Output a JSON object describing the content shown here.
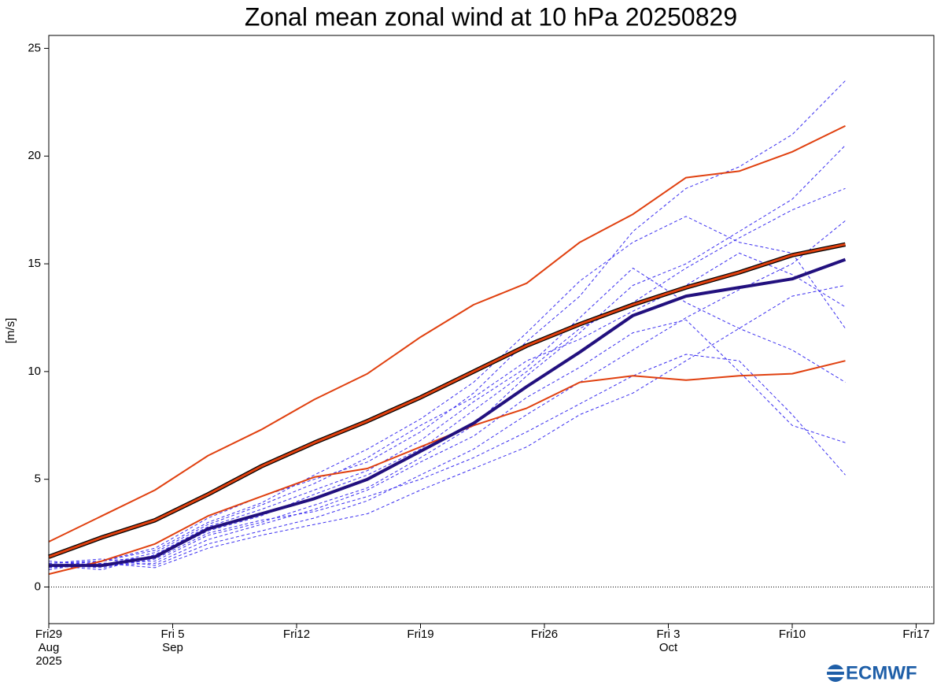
{
  "chart_data": {
    "type": "line",
    "title": "Zonal mean zonal wind at 10 hPa 20250829",
    "y_label": "[m/s]",
    "logo": "ECMWF",
    "x": [
      "2025-08-29",
      "2025-09-01",
      "2025-09-04",
      "2025-09-07",
      "2025-09-10",
      "2025-09-13",
      "2025-09-16",
      "2025-09-19",
      "2025-09-22",
      "2025-09-25",
      "2025-09-28",
      "2025-10-01",
      "2025-10-04",
      "2025-10-07",
      "2025-10-10",
      "2025-10-13"
    ],
    "xlim": [
      "2025-08-29",
      "2025-10-18"
    ],
    "xticks": [
      {
        "value": "2025-08-29",
        "label": "Fri29\nAug\n2025"
      },
      {
        "value": "2025-09-05",
        "label": "Fri 5\nSep"
      },
      {
        "value": "2025-09-12",
        "label": "Fri12"
      },
      {
        "value": "2025-09-19",
        "label": "Fri19"
      },
      {
        "value": "2025-09-26",
        "label": "Fri26"
      },
      {
        "value": "2025-10-03",
        "label": "Fri 3\nOct"
      },
      {
        "value": "2025-10-10",
        "label": "Fri10"
      },
      {
        "value": "2025-10-17",
        "label": "Fri17"
      }
    ],
    "ylim": [
      -1.7,
      25.6
    ],
    "yticks": [
      0,
      5,
      10,
      15,
      20,
      25
    ],
    "reference_line": 0,
    "series": [
      {
        "color": "#3a2ef0",
        "style": "dashed",
        "width": 1,
        "values": [
          0.9,
          1.1,
          1.2,
          2.4,
          3.0,
          3.8,
          4.6,
          6.0,
          7.5,
          9.8,
          11.8,
          14.0,
          15.0,
          16.5,
          18.0,
          20.5
        ]
      },
      {
        "color": "#3a2ef0",
        "style": "dashed",
        "width": 1,
        "values": [
          1.0,
          0.8,
          1.5,
          2.8,
          3.6,
          4.5,
          5.4,
          6.8,
          8.6,
          10.2,
          12.5,
          14.8,
          13.2,
          12.0,
          11.0,
          9.5
        ]
      },
      {
        "color": "#3a2ef0",
        "style": "dashed",
        "width": 1,
        "values": [
          1.1,
          1.3,
          1.0,
          2.0,
          2.6,
          3.2,
          4.0,
          5.2,
          6.4,
          8.0,
          9.5,
          11.0,
          12.5,
          13.8,
          15.0,
          17.0
        ]
      },
      {
        "color": "#3a2ef0",
        "style": "dashed",
        "width": 1,
        "values": [
          0.8,
          1.2,
          1.8,
          3.2,
          4.2,
          5.0,
          5.8,
          7.2,
          9.0,
          11.4,
          13.5,
          16.5,
          18.5,
          19.5,
          21.0,
          23.5
        ]
      },
      {
        "color": "#3a2ef0",
        "style": "dashed",
        "width": 1,
        "values": [
          1.0,
          0.9,
          1.3,
          2.5,
          3.1,
          3.5,
          4.2,
          5.0,
          6.0,
          7.2,
          8.5,
          9.8,
          10.8,
          10.5,
          8.0,
          5.2
        ]
      },
      {
        "color": "#3a2ef0",
        "style": "dashed",
        "width": 1,
        "values": [
          1.2,
          1.0,
          1.6,
          2.9,
          3.8,
          4.8,
          6.0,
          7.5,
          8.8,
          10.5,
          11.5,
          12.8,
          14.0,
          15.5,
          14.5,
          13.0
        ]
      },
      {
        "color": "#3a2ef0",
        "style": "dashed",
        "width": 1,
        "values": [
          0.9,
          1.1,
          0.9,
          1.8,
          2.4,
          2.9,
          3.4,
          4.5,
          5.5,
          6.5,
          8.0,
          9.0,
          10.5,
          12.0,
          13.5,
          14.0
        ]
      },
      {
        "color": "#3a2ef0",
        "style": "dashed",
        "width": 1,
        "values": [
          1.0,
          1.2,
          1.4,
          2.6,
          3.3,
          4.3,
          5.2,
          6.4,
          8.2,
          10.0,
          12.0,
          13.2,
          14.8,
          16.2,
          17.5,
          18.5
        ]
      },
      {
        "color": "#3a2ef0",
        "style": "dashed",
        "width": 1,
        "values": [
          0.9,
          1.0,
          1.1,
          2.2,
          2.9,
          3.6,
          4.5,
          5.8,
          7.0,
          8.8,
          10.2,
          11.8,
          12.4,
          10.0,
          7.5,
          6.7
        ]
      },
      {
        "color": "#3a2ef0",
        "style": "dashed",
        "width": 1,
        "values": [
          1.1,
          1.2,
          1.7,
          3.0,
          3.9,
          5.2,
          6.4,
          7.8,
          9.5,
          11.8,
          14.2,
          16.0,
          17.2,
          16.0,
          15.5,
          12.0
        ]
      },
      {
        "color": "#e0400f",
        "style": "solid",
        "width": 2,
        "values": [
          2.1,
          3.3,
          4.5,
          6.1,
          7.3,
          8.7,
          9.9,
          11.6,
          13.1,
          14.1,
          16.0,
          17.3,
          19.0,
          19.3,
          20.2,
          21.4
        ]
      },
      {
        "color": "#e0400f",
        "style": "solid",
        "width": 2,
        "values": [
          0.6,
          1.2,
          2.0,
          3.3,
          4.2,
          5.1,
          5.5,
          6.5,
          7.5,
          8.3,
          9.5,
          9.8,
          9.6,
          9.8,
          9.9,
          10.5
        ]
      },
      {
        "color": "#e0400f",
        "style": "solid",
        "width": 3,
        "outline": "#000000",
        "values": [
          1.4,
          2.3,
          3.1,
          4.3,
          5.6,
          6.7,
          7.7,
          8.8,
          10.0,
          11.2,
          12.2,
          13.1,
          13.9,
          14.6,
          15.4,
          15.9
        ]
      },
      {
        "color": "#22107e",
        "style": "solid",
        "width": 4,
        "values": [
          1.0,
          1.0,
          1.4,
          2.7,
          3.4,
          4.1,
          5.0,
          6.3,
          7.6,
          9.3,
          10.9,
          12.6,
          13.5,
          13.9,
          14.3,
          15.2
        ]
      }
    ]
  }
}
